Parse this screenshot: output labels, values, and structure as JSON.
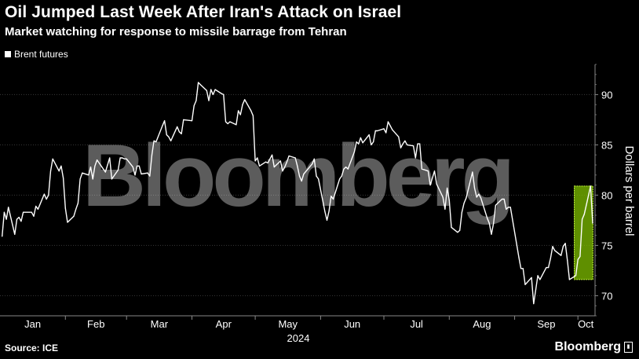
{
  "header": {
    "title": "Oil Jumped Last Week After Iran's Attack on Israel",
    "subtitle": "Market watching for response to missile barrage from Tehran"
  },
  "legend": {
    "label": "Brent futures"
  },
  "watermark": {
    "text": "Bloomberg"
  },
  "footer": {
    "source": "Source: ICE",
    "brand": "Bloomberg",
    "brand_icon": "bloomberg-chart-icon"
  },
  "colors": {
    "line": "#ffffff",
    "highlight_fill": "#7fbf00",
    "highlight_border": "#c8ff3c",
    "grid": "#3a3a3a",
    "background": "#000000"
  },
  "chart_data": {
    "type": "line",
    "title": "Oil Jumped Last Week After Iran's Attack on Israel",
    "subtitle": "Market watching for response to missile barrage from Tehran",
    "ylabel": "Dollars per barrel",
    "xlabel": "2024",
    "x_ticks": [
      "Jan",
      "Feb",
      "Mar",
      "Apr",
      "May",
      "Jun",
      "Jul",
      "Aug",
      "Sep",
      "Oct"
    ],
    "y_ticks": [
      70,
      75,
      80,
      85,
      90
    ],
    "ylim": [
      68,
      93
    ],
    "x_range": [
      "2024-01-01",
      "2024-10-08"
    ],
    "grid": "horizontal",
    "legend_position": "top-left",
    "series": [
      {
        "name": "Brent futures",
        "x": [
          "2024-01-02",
          "2024-01-03",
          "2024-01-04",
          "2024-01-05",
          "2024-01-08",
          "2024-01-09",
          "2024-01-10",
          "2024-01-11",
          "2024-01-12",
          "2024-01-16",
          "2024-01-17",
          "2024-01-18",
          "2024-01-19",
          "2024-01-22",
          "2024-01-23",
          "2024-01-24",
          "2024-01-25",
          "2024-01-26",
          "2024-01-29",
          "2024-01-30",
          "2024-01-31",
          "2024-02-01",
          "2024-02-02",
          "2024-02-05",
          "2024-02-06",
          "2024-02-07",
          "2024-02-08",
          "2024-02-09",
          "2024-02-12",
          "2024-02-13",
          "2024-02-14",
          "2024-02-15",
          "2024-02-16",
          "2024-02-20",
          "2024-02-21",
          "2024-02-22",
          "2024-02-23",
          "2024-02-26",
          "2024-02-27",
          "2024-02-28",
          "2024-02-29",
          "2024-03-01",
          "2024-03-04",
          "2024-03-05",
          "2024-03-06",
          "2024-03-07",
          "2024-03-08",
          "2024-03-11",
          "2024-03-12",
          "2024-03-13",
          "2024-03-14",
          "2024-03-15",
          "2024-03-18",
          "2024-03-19",
          "2024-03-20",
          "2024-03-21",
          "2024-03-22",
          "2024-03-25",
          "2024-03-26",
          "2024-03-27",
          "2024-03-28",
          "2024-04-01",
          "2024-04-02",
          "2024-04-03",
          "2024-04-04",
          "2024-04-05",
          "2024-04-08",
          "2024-04-09",
          "2024-04-10",
          "2024-04-11",
          "2024-04-12",
          "2024-04-15",
          "2024-04-16",
          "2024-04-17",
          "2024-04-18",
          "2024-04-19",
          "2024-04-22",
          "2024-04-23",
          "2024-04-24",
          "2024-04-25",
          "2024-04-26",
          "2024-04-29",
          "2024-04-30",
          "2024-05-01",
          "2024-05-02",
          "2024-05-03",
          "2024-05-06",
          "2024-05-07",
          "2024-05-08",
          "2024-05-09",
          "2024-05-10",
          "2024-05-13",
          "2024-05-14",
          "2024-05-15",
          "2024-05-16",
          "2024-05-17",
          "2024-05-20",
          "2024-05-21",
          "2024-05-22",
          "2024-05-23",
          "2024-05-24",
          "2024-05-28",
          "2024-05-29",
          "2024-05-30",
          "2024-05-31",
          "2024-06-03",
          "2024-06-04",
          "2024-06-05",
          "2024-06-06",
          "2024-06-07",
          "2024-06-10",
          "2024-06-11",
          "2024-06-12",
          "2024-06-13",
          "2024-06-14",
          "2024-06-17",
          "2024-06-18",
          "2024-06-19",
          "2024-06-20",
          "2024-06-21",
          "2024-06-24",
          "2024-06-25",
          "2024-06-26",
          "2024-06-27",
          "2024-06-28",
          "2024-07-01",
          "2024-07-02",
          "2024-07-03",
          "2024-07-05",
          "2024-07-08",
          "2024-07-09",
          "2024-07-10",
          "2024-07-11",
          "2024-07-12",
          "2024-07-15",
          "2024-07-16",
          "2024-07-17",
          "2024-07-18",
          "2024-07-19",
          "2024-07-22",
          "2024-07-23",
          "2024-07-24",
          "2024-07-25",
          "2024-07-26",
          "2024-07-29",
          "2024-07-30",
          "2024-07-31",
          "2024-08-01",
          "2024-08-02",
          "2024-08-05",
          "2024-08-06",
          "2024-08-07",
          "2024-08-08",
          "2024-08-09",
          "2024-08-12",
          "2024-08-13",
          "2024-08-14",
          "2024-08-15",
          "2024-08-16",
          "2024-08-19",
          "2024-08-20",
          "2024-08-21",
          "2024-08-22",
          "2024-08-23",
          "2024-08-26",
          "2024-08-27",
          "2024-08-28",
          "2024-08-29",
          "2024-08-30",
          "2024-09-03",
          "2024-09-04",
          "2024-09-05",
          "2024-09-06",
          "2024-09-09",
          "2024-09-10",
          "2024-09-11",
          "2024-09-12",
          "2024-09-13",
          "2024-09-16",
          "2024-09-17",
          "2024-09-18",
          "2024-09-19",
          "2024-09-20",
          "2024-09-23",
          "2024-09-24",
          "2024-09-25",
          "2024-09-26",
          "2024-09-27",
          "2024-09-30",
          "2024-10-01",
          "2024-10-02",
          "2024-10-03",
          "2024-10-04",
          "2024-10-07",
          "2024-10-08"
        ],
        "values": [
          75.9,
          78.3,
          77.6,
          78.8,
          76.1,
          77.6,
          77.8,
          77.4,
          78.3,
          78.3,
          77.9,
          78.9,
          78.6,
          80.1,
          79.6,
          80.0,
          82.4,
          83.6,
          82.4,
          82.9,
          81.7,
          78.7,
          77.3,
          77.9,
          78.6,
          79.2,
          81.6,
          82.2,
          82.0,
          82.8,
          81.6,
          82.9,
          83.5,
          82.3,
          83.0,
          83.7,
          81.6,
          82.5,
          83.7,
          83.7,
          83.6,
          83.6,
          82.8,
          82.0,
          82.9,
          82.9,
          82.1,
          82.2,
          81.9,
          84.0,
          85.4,
          85.3,
          86.9,
          87.4,
          86.0,
          85.8,
          85.4,
          86.8,
          86.3,
          86.1,
          87.5,
          87.4,
          88.9,
          89.4,
          91.2,
          91.0,
          90.4,
          89.4,
          90.5,
          90.0,
          90.5,
          90.1,
          90.0,
          87.3,
          87.1,
          87.3,
          87.0,
          88.4,
          88.0,
          89.0,
          89.5,
          88.4,
          87.9,
          83.4,
          83.7,
          82.9,
          83.3,
          83.2,
          83.6,
          84.0,
          82.8,
          83.4,
          82.4,
          82.8,
          83.3,
          83.9,
          83.7,
          82.9,
          81.9,
          81.4,
          82.1,
          83.1,
          83.6,
          81.9,
          81.6,
          78.4,
          77.5,
          78.4,
          79.9,
          79.6,
          81.6,
          81.9,
          82.6,
          82.8,
          82.6,
          84.3,
          85.3,
          85.1,
          85.7,
          85.2,
          86.0,
          85.0,
          85.3,
          86.4,
          86.4,
          86.6,
          86.2,
          87.3,
          86.5,
          85.8,
          84.7,
          85.1,
          85.4,
          85.0,
          84.9,
          83.7,
          85.1,
          85.1,
          82.6,
          82.4,
          81.0,
          81.7,
          82.4,
          81.1,
          79.8,
          78.6,
          80.7,
          79.5,
          76.8,
          76.3,
          76.5,
          78.3,
          79.2,
          79.7,
          82.3,
          80.7,
          79.8,
          80.1,
          79.7,
          77.7,
          77.2,
          76.1,
          77.2,
          79.0,
          79.6,
          79.6,
          78.6,
          78.8,
          78.8,
          73.8,
          72.7,
          72.7,
          71.1,
          71.8,
          69.2,
          70.6,
          72.0,
          71.6,
          72.8,
          72.8,
          73.7,
          74.9,
          74.5,
          74.0,
          74.9,
          75.2,
          73.5,
          71.6,
          72.0,
          73.6,
          73.9,
          77.6,
          78.1,
          80.9,
          77.2
        ]
      }
    ],
    "highlight": {
      "from": "2024-09-30",
      "to": "2024-10-07",
      "y_from": 71.6,
      "y_to": 80.9
    }
  }
}
